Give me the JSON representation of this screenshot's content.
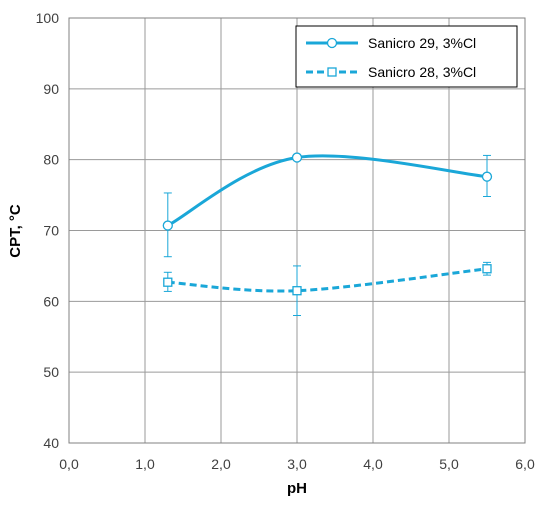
{
  "chart_data": {
    "type": "line",
    "title": "",
    "xlabel": "pH",
    "ylabel": "CPT, °C",
    "xlim": [
      0,
      6
    ],
    "ylim": [
      40,
      100
    ],
    "x_ticks": [
      "0,0",
      "1,0",
      "2,0",
      "3,0",
      "4,0",
      "5,0",
      "6,0"
    ],
    "y_ticks": [
      "40",
      "50",
      "60",
      "70",
      "80",
      "90",
      "100"
    ],
    "grid": true,
    "legend_position": "top-right",
    "series": [
      {
        "name": "Sanicro 29, 3%Cl",
        "style": "solid",
        "marker": "circle",
        "color": "#1aa7d8",
        "x": [
          1.3,
          3.0,
          5.5
        ],
        "y": [
          70.7,
          80.3,
          77.6
        ],
        "error_low": [
          66.3,
          80.0,
          74.8
        ],
        "error_high": [
          75.3,
          80.6,
          80.6
        ]
      },
      {
        "name": "Sanicro 28, 3%Cl",
        "style": "dashed",
        "marker": "square",
        "color": "#1aa7d8",
        "x": [
          1.3,
          3.0,
          5.5
        ],
        "y": [
          62.7,
          61.5,
          64.6
        ],
        "error_low": [
          61.4,
          58.0,
          63.7
        ],
        "error_high": [
          64.1,
          65.0,
          65.5
        ]
      }
    ]
  }
}
